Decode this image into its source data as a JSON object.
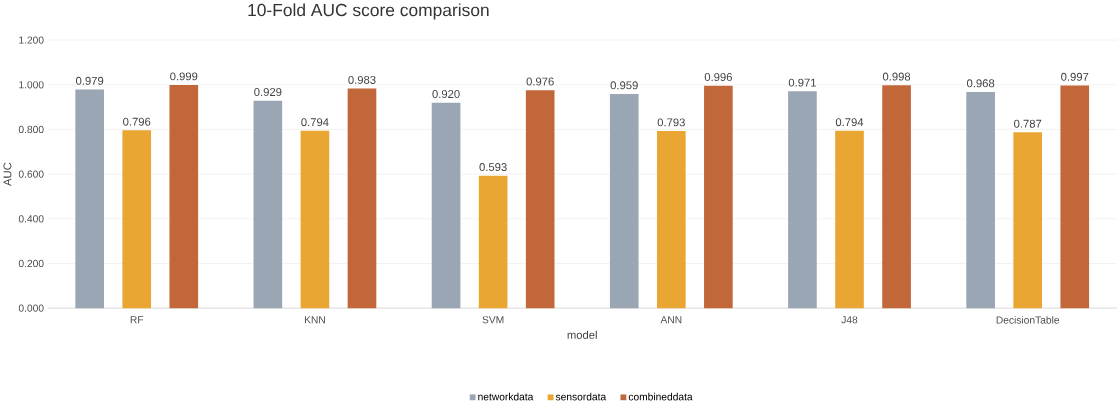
{
  "chart_data": {
    "type": "bar",
    "title": "10-Fold AUC score comparison",
    "xlabel": "model",
    "ylabel": "AUC",
    "categories": [
      "RF",
      "KNN",
      "SVM",
      "ANN",
      "J48",
      "DecisionTable"
    ],
    "series": [
      {
        "name": "networkdata",
        "color": "#9aa6b4",
        "values": [
          0.979,
          0.929,
          0.92,
          0.959,
          0.971,
          0.968
        ],
        "value_labels": [
          "0.979",
          "0.929",
          "0.920",
          "0.959",
          "0.971",
          "0.968"
        ]
      },
      {
        "name": "sensordata",
        "color": "#e9a632",
        "values": [
          0.796,
          0.794,
          0.593,
          0.793,
          0.794,
          0.787
        ],
        "value_labels": [
          "0.796",
          "0.794",
          "0.593",
          "0.793",
          "0.794",
          "0.787"
        ]
      },
      {
        "name": "combineddata",
        "color": "#c1673a",
        "values": [
          0.999,
          0.983,
          0.976,
          0.996,
          0.998,
          0.997
        ],
        "value_labels": [
          "0.999",
          "0.983",
          "0.976",
          "0.996",
          "0.998",
          "0.997"
        ]
      }
    ],
    "ylim": [
      0,
      1.2
    ],
    "yticks": [
      {
        "value": 0,
        "label": "0.000"
      },
      {
        "value": 0.2,
        "label": "0.200"
      },
      {
        "value": 0.4,
        "label": "0.400"
      },
      {
        "value": 0.6,
        "label": "0.600"
      },
      {
        "value": 0.8,
        "label": "0.800"
      },
      {
        "value": 1.0,
        "label": "1.000"
      },
      {
        "value": 1.2,
        "label": "1.200"
      }
    ],
    "grid": "y",
    "legend": "bottom"
  }
}
